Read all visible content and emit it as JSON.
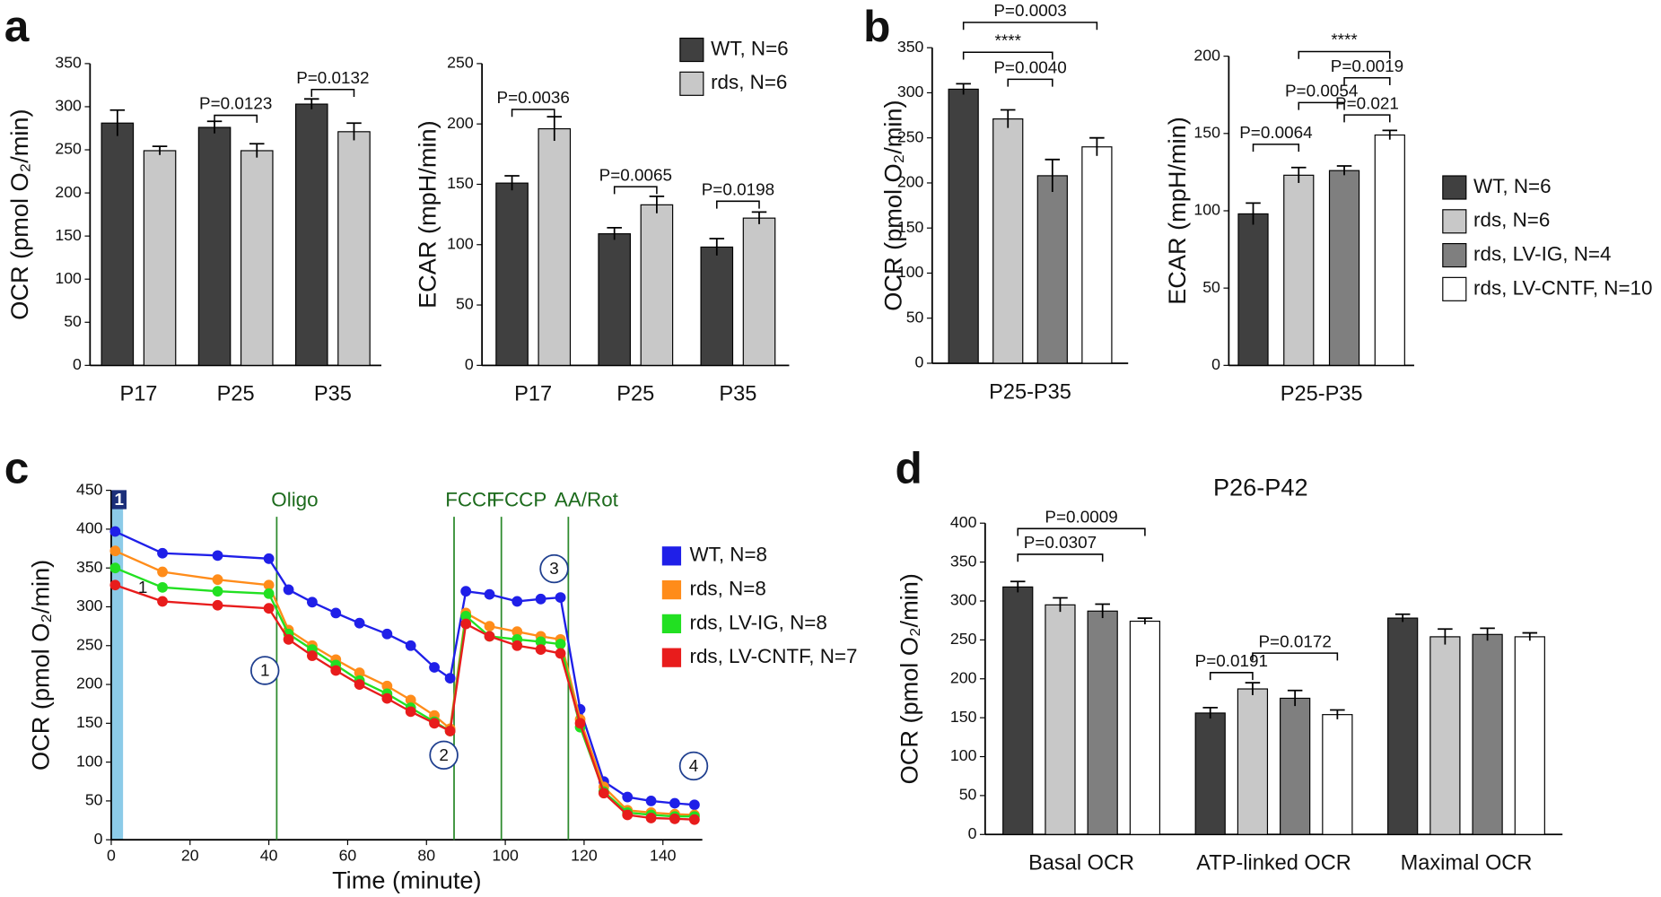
{
  "panel_labels": [
    "a",
    "b",
    "c",
    "d"
  ],
  "chart_data": [
    {
      "type": "bar",
      "ylabel": "OCR (pmol O₂/min)",
      "categories": [
        "P17",
        "P25",
        "P35"
      ],
      "series": [
        {
          "name": "WT, N=6",
          "color": "#404040",
          "values": [
            281,
            276,
            303
          ],
          "errors": [
            15,
            7,
            6
          ]
        },
        {
          "name": "rds, N=6",
          "color": "#c8c8c8",
          "values": [
            249,
            249,
            271
          ],
          "errors": [
            5,
            8,
            10
          ]
        }
      ],
      "ylim": [
        0,
        350
      ],
      "yticks": [
        0,
        50,
        100,
        150,
        200,
        250,
        300,
        350
      ],
      "annotations": [
        {
          "text": "P=0.0123",
          "from": [
            1,
            0
          ],
          "to": [
            1,
            1
          ],
          "y": 290
        },
        {
          "text": "P=0.0132",
          "from": [
            2,
            0
          ],
          "to": [
            2,
            1
          ],
          "y": 320
        }
      ]
    },
    {
      "type": "bar",
      "ylabel": "ECAR (mpH/min)",
      "categories": [
        "P17",
        "P25",
        "P35"
      ],
      "legend": "upper right",
      "series": [
        {
          "name": "WT, N=6",
          "color": "#404040",
          "values": [
            151,
            109,
            98
          ],
          "errors": [
            6,
            5,
            7
          ]
        },
        {
          "name": "rds, N=6",
          "color": "#c8c8c8",
          "values": [
            196,
            133,
            122
          ],
          "errors": [
            10,
            7,
            5
          ]
        }
      ],
      "ylim": [
        0,
        250
      ],
      "yticks": [
        0,
        50,
        100,
        150,
        200,
        250
      ],
      "annotations": [
        {
          "text": "P=0.0036",
          "from": [
            0,
            0
          ],
          "to": [
            0,
            1
          ],
          "y": 212
        },
        {
          "text": "P=0.0065",
          "from": [
            1,
            0
          ],
          "to": [
            1,
            1
          ],
          "y": 148
        },
        {
          "text": "P=0.0198",
          "from": [
            2,
            0
          ],
          "to": [
            2,
            1
          ],
          "y": 136
        }
      ]
    },
    {
      "type": "bar",
      "ylabel": "OCR (pmol O₂/min)",
      "categories": [
        "P25-P35"
      ],
      "series": [
        {
          "name": "WT, N=6",
          "color": "#404040",
          "values": [
            304
          ],
          "errors": [
            6
          ]
        },
        {
          "name": "rds, N=6",
          "color": "#c8c8c8",
          "values": [
            271
          ],
          "errors": [
            10
          ]
        },
        {
          "name": "rds, LV-IG, N=4",
          "color": "#7f7f7f",
          "values": [
            208
          ],
          "errors": [
            18
          ]
        },
        {
          "name": "rds, LV-CNTF, N=10",
          "color": "#ffffff",
          "values": [
            240
          ],
          "errors": [
            10
          ]
        }
      ],
      "ylim": [
        0,
        350
      ],
      "yticks": [
        0,
        50,
        100,
        150,
        200,
        250,
        300,
        350
      ],
      "annotations": [
        {
          "text": "P=0.0003",
          "from": [
            0,
            0
          ],
          "to": [
            0,
            3
          ],
          "y": 378
        },
        {
          "text": "****",
          "from": [
            0,
            0
          ],
          "to": [
            0,
            2
          ],
          "y": 345
        },
        {
          "text": "P=0.0040",
          "from": [
            0,
            1
          ],
          "to": [
            0,
            2
          ],
          "y": 315
        }
      ]
    },
    {
      "type": "bar",
      "ylabel": "ECAR (mpH/min)",
      "categories": [
        "P25-P35"
      ],
      "legend": "right",
      "series": [
        {
          "name": "WT, N=6",
          "color": "#404040",
          "values": [
            98
          ],
          "errors": [
            7
          ]
        },
        {
          "name": "rds, N=6",
          "color": "#c8c8c8",
          "values": [
            123
          ],
          "errors": [
            5
          ]
        },
        {
          "name": "rds, LV-IG, N=4",
          "color": "#7f7f7f",
          "values": [
            126
          ],
          "errors": [
            3
          ]
        },
        {
          "name": "rds, LV-CNTF, N=10",
          "color": "#ffffff",
          "values": [
            149
          ],
          "errors": [
            3
          ]
        }
      ],
      "ylim": [
        0,
        200
      ],
      "yticks": [
        0,
        50,
        100,
        150,
        200
      ],
      "annotations": [
        {
          "text": "****",
          "from": [
            0,
            1
          ],
          "to": [
            0,
            3
          ],
          "y": 203
        },
        {
          "text": "P=0.0019",
          "from": [
            0,
            2
          ],
          "to": [
            0,
            3
          ],
          "y": 186
        },
        {
          "text": "P=0.0054",
          "from": [
            0,
            1
          ],
          "to": [
            0,
            2
          ],
          "y": 170
        },
        {
          "text": "P=0.021",
          "from": [
            0,
            2
          ],
          "to": [
            0,
            3
          ],
          "y": 162
        },
        {
          "text": "P=0.0064",
          "from": [
            0,
            0
          ],
          "to": [
            0,
            1
          ],
          "y": 143
        }
      ]
    },
    {
      "type": "line",
      "ylabel": "OCR (pmol O₂/min)",
      "xlabel": "Time (minute)",
      "legend": "right",
      "x": [
        1,
        13,
        27,
        40,
        45,
        51,
        57,
        63,
        70,
        76,
        82,
        86,
        90,
        96,
        103,
        109,
        114,
        119,
        125,
        131,
        137,
        143,
        148
      ],
      "series": [
        {
          "name": "WT, N=8",
          "color": "#1f1fe8",
          "values": [
            397,
            369,
            366,
            362,
            322,
            306,
            292,
            279,
            265,
            250,
            222,
            208,
            320,
            316,
            307,
            310,
            312,
            168,
            75,
            55,
            50,
            47,
            45
          ]
        },
        {
          "name": "rds, N=8",
          "color": "#ff8c1a",
          "values": [
            372,
            345,
            335,
            328,
            270,
            250,
            232,
            215,
            198,
            180,
            160,
            143,
            292,
            275,
            268,
            262,
            258,
            155,
            68,
            38,
            35,
            33,
            32
          ]
        },
        {
          "name": "rds, LV-IG, N=8",
          "color": "#22e022",
          "values": [
            350,
            325,
            320,
            317,
            265,
            245,
            225,
            205,
            188,
            170,
            152,
            140,
            288,
            262,
            258,
            255,
            252,
            145,
            62,
            35,
            32,
            30,
            30
          ]
        },
        {
          "name": "rds, LV-CNTF, N=7",
          "color": "#e81c1c",
          "values": [
            328,
            307,
            302,
            298,
            258,
            237,
            218,
            200,
            182,
            165,
            150,
            140,
            278,
            262,
            250,
            245,
            240,
            150,
            60,
            32,
            28,
            27,
            26
          ]
        }
      ],
      "xlim": [
        0,
        150
      ],
      "xticks": [
        0,
        20,
        40,
        60,
        80,
        100,
        120,
        140
      ],
      "ylim": [
        0,
        450
      ],
      "yticks": [
        0,
        50,
        100,
        150,
        200,
        250,
        300,
        350,
        400,
        450
      ],
      "highlight": {
        "xlim": [
          0,
          3
        ],
        "color": "#8ccbe8"
      },
      "events": [
        {
          "x": 42,
          "label": "Oligo"
        },
        {
          "x": 87,
          "label": "FCCF"
        },
        {
          "x": 99,
          "label": "FCCP"
        },
        {
          "x": 116,
          "label": "AA/Rot"
        }
      ],
      "annotations": [
        {
          "text": "1",
          "x": 2,
          "y": 438,
          "style": "box"
        },
        {
          "text": "1",
          "x": 8,
          "y": 325,
          "style": "plain"
        },
        {
          "text": "1",
          "x": 39,
          "y": 218,
          "style": "circle"
        },
        {
          "text": "2",
          "x": 84.4,
          "y": 109,
          "style": "circle"
        },
        {
          "text": "3",
          "x": 112.4,
          "y": 349,
          "style": "circle"
        },
        {
          "text": "4",
          "x": 147.8,
          "y": 95,
          "style": "circle"
        }
      ]
    },
    {
      "type": "bar",
      "title": "P26-P42",
      "ylabel": "OCR (pmol O₂/min)",
      "categories": [
        "Basal OCR",
        "ATP-linked OCR",
        "Maximal OCR"
      ],
      "series": [
        {
          "color": "#404040",
          "values": [
            318,
            156,
            278
          ],
          "errors": [
            7,
            7,
            5
          ]
        },
        {
          "color": "#c8c8c8",
          "values": [
            295,
            187,
            254
          ],
          "errors": [
            9,
            8,
            10
          ]
        },
        {
          "color": "#7f7f7f",
          "values": [
            287,
            175,
            257
          ],
          "errors": [
            9,
            10,
            8
          ]
        },
        {
          "color": "#ffffff",
          "values": [
            274,
            154,
            254
          ],
          "errors": [
            4,
            6,
            5
          ]
        }
      ],
      "ylim": [
        0,
        400
      ],
      "yticks": [
        0,
        50,
        100,
        150,
        200,
        250,
        300,
        350,
        400
      ],
      "annotations": [
        {
          "text": "P=0.0009",
          "from": [
            0,
            0
          ],
          "to": [
            0,
            3
          ],
          "y": 393
        },
        {
          "text": "P=0.0307",
          "from": [
            0,
            0
          ],
          "to": [
            0,
            2
          ],
          "y": 360
        },
        {
          "text": "P=0.0191",
          "from": [
            1,
            0
          ],
          "to": [
            1,
            1
          ],
          "y": 208
        },
        {
          "text": "P=0.0172",
          "from": [
            1,
            1
          ],
          "to": [
            1,
            3
          ],
          "y": 233
        }
      ]
    }
  ]
}
